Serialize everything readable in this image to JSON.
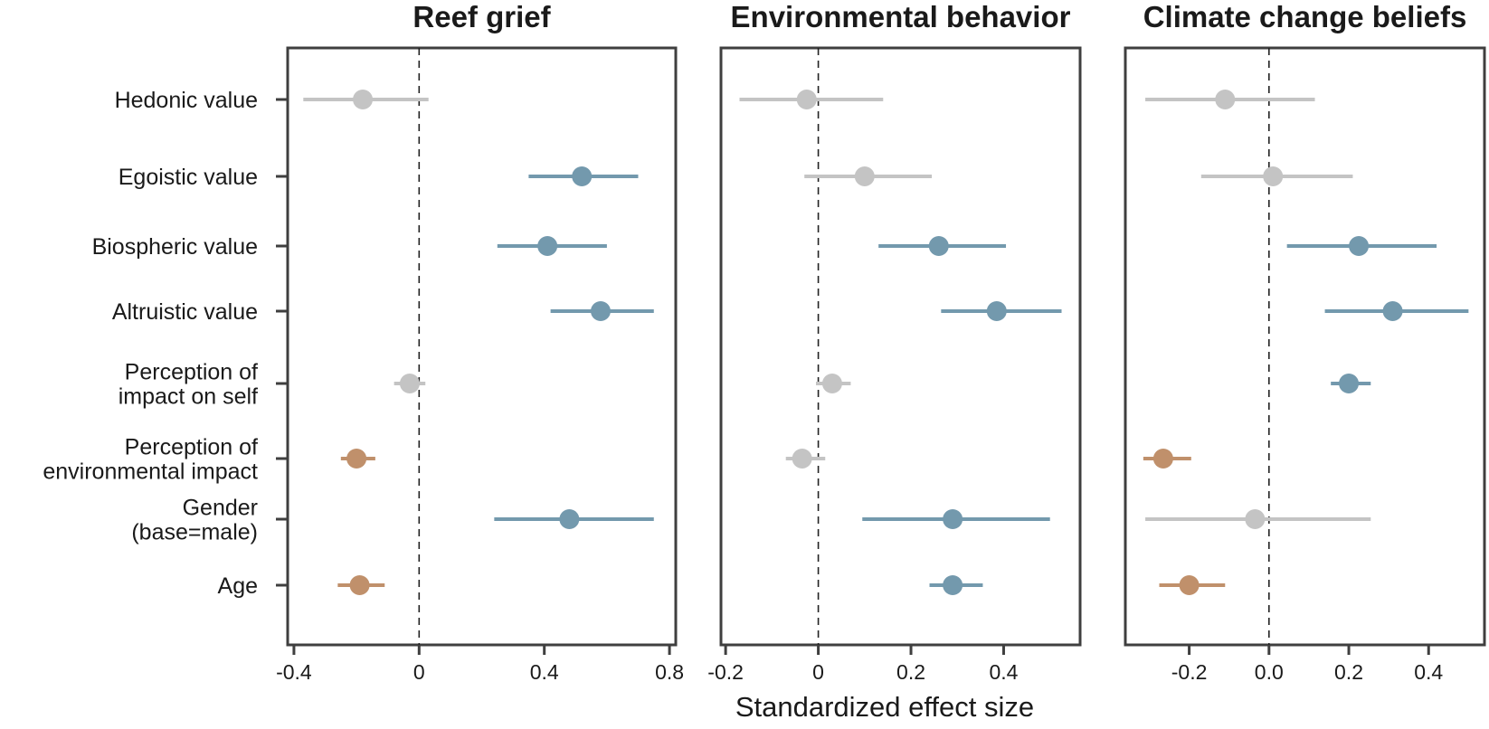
{
  "colors": {
    "positive": "#7399ad",
    "negative": "#c0906b",
    "nonsignificant": "#c4c4c4",
    "frame": "#3f3f3f",
    "text": "#1a1a1a"
  },
  "chart_data": {
    "type": "forest",
    "xlabel": "Standardized effect size",
    "categories": [
      "Hedonic value",
      "Egoistic value",
      "Biospheric value",
      "Altruistic value",
      "Perception of\nimpact on self",
      "Perception of\nenvironmental impact",
      "Gender\n(base=male)",
      "Age"
    ],
    "panels": [
      {
        "title": "Reef grief",
        "xlim": [
          -0.42,
          0.82
        ],
        "xticks": [
          -0.4,
          0,
          0.4,
          0.8
        ],
        "xtick_labels": [
          "-0.4",
          "0",
          "0.4",
          "0.8"
        ],
        "estimates": [
          {
            "est": -0.18,
            "lo": -0.37,
            "hi": 0.03,
            "sig": "none"
          },
          {
            "est": 0.52,
            "lo": 0.35,
            "hi": 0.7,
            "sig": "positive"
          },
          {
            "est": 0.41,
            "lo": 0.25,
            "hi": 0.6,
            "sig": "positive"
          },
          {
            "est": 0.58,
            "lo": 0.42,
            "hi": 0.75,
            "sig": "positive"
          },
          {
            "est": -0.03,
            "lo": -0.08,
            "hi": 0.02,
            "sig": "none"
          },
          {
            "est": -0.2,
            "lo": -0.25,
            "hi": -0.14,
            "sig": "negative"
          },
          {
            "est": 0.48,
            "lo": 0.24,
            "hi": 0.75,
            "sig": "positive"
          },
          {
            "est": -0.19,
            "lo": -0.26,
            "hi": -0.11,
            "sig": "negative"
          }
        ]
      },
      {
        "title": "Environmental behavior",
        "xlim": [
          -0.21,
          0.565
        ],
        "xticks": [
          -0.2,
          0,
          0.2,
          0.4
        ],
        "xtick_labels": [
          "-0.2",
          "0",
          "0.2",
          "0.4"
        ],
        "estimates": [
          {
            "est": -0.025,
            "lo": -0.17,
            "hi": 0.14,
            "sig": "none"
          },
          {
            "est": 0.1,
            "lo": -0.03,
            "hi": 0.245,
            "sig": "none"
          },
          {
            "est": 0.26,
            "lo": 0.13,
            "hi": 0.405,
            "sig": "positive"
          },
          {
            "est": 0.385,
            "lo": 0.265,
            "hi": 0.525,
            "sig": "positive"
          },
          {
            "est": 0.03,
            "lo": -0.005,
            "hi": 0.07,
            "sig": "none"
          },
          {
            "est": -0.035,
            "lo": -0.07,
            "hi": 0.015,
            "sig": "none"
          },
          {
            "est": 0.29,
            "lo": 0.095,
            "hi": 0.5,
            "sig": "positive"
          },
          {
            "est": 0.29,
            "lo": 0.24,
            "hi": 0.355,
            "sig": "positive"
          }
        ]
      },
      {
        "title": "Climate change beliefs",
        "xlim": [
          -0.36,
          0.54
        ],
        "xticks": [
          -0.2,
          0.0,
          0.2,
          0.4
        ],
        "xtick_labels": [
          "-0.2",
          "0.0",
          "0.2",
          "0.4"
        ],
        "estimates": [
          {
            "est": -0.11,
            "lo": -0.31,
            "hi": 0.115,
            "sig": "none"
          },
          {
            "est": 0.01,
            "lo": -0.17,
            "hi": 0.21,
            "sig": "none"
          },
          {
            "est": 0.225,
            "lo": 0.045,
            "hi": 0.42,
            "sig": "positive"
          },
          {
            "est": 0.31,
            "lo": 0.14,
            "hi": 0.5,
            "sig": "positive"
          },
          {
            "est": 0.2,
            "lo": 0.155,
            "hi": 0.255,
            "sig": "positive"
          },
          {
            "est": -0.265,
            "lo": -0.315,
            "hi": -0.195,
            "sig": "negative"
          },
          {
            "est": -0.035,
            "lo": -0.31,
            "hi": 0.255,
            "sig": "none"
          },
          {
            "est": -0.2,
            "lo": -0.275,
            "hi": -0.11,
            "sig": "negative"
          }
        ]
      }
    ]
  }
}
